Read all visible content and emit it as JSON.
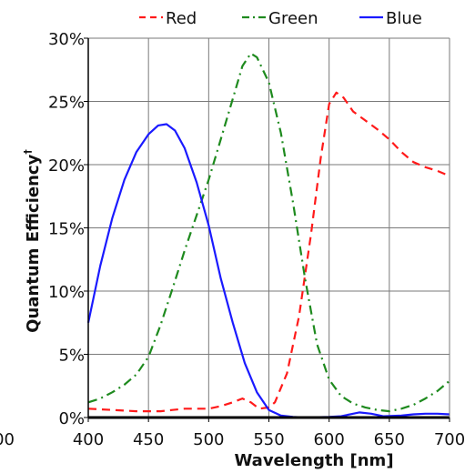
{
  "chart_data": {
    "type": "line",
    "title": "",
    "xlabel": "Wavelength [nm]",
    "ylabel": "Quantum Efficiency",
    "ylabel_mark": "†",
    "xlim": [
      400,
      700
    ],
    "ylim": [
      0,
      30
    ],
    "x_ticks": [
      400,
      450,
      500,
      550,
      600,
      650,
      700
    ],
    "x_tick_labels": [
      "400",
      "450",
      "500",
      "550",
      "600",
      "650",
      "700"
    ],
    "y_ticks": [
      0,
      5,
      10,
      15,
      20,
      25,
      30
    ],
    "y_tick_labels": [
      "0%",
      "5%",
      "10%",
      "15%",
      "20%",
      "25%",
      "30%"
    ],
    "stray_label": "00",
    "grid": true,
    "legend_position": "top",
    "series": [
      {
        "name": "Red",
        "color": "#ff1a1a",
        "dash": "dashed",
        "points": [
          [
            400,
            0.7
          ],
          [
            420,
            0.6
          ],
          [
            440,
            0.5
          ],
          [
            460,
            0.5
          ],
          [
            470,
            0.6
          ],
          [
            480,
            0.7
          ],
          [
            500,
            0.7
          ],
          [
            510,
            0.9
          ],
          [
            520,
            1.2
          ],
          [
            528,
            1.5
          ],
          [
            535,
            1.2
          ],
          [
            542,
            0.7
          ],
          [
            550,
            0.8
          ],
          [
            555,
            1.2
          ],
          [
            565,
            3.5
          ],
          [
            575,
            8.0
          ],
          [
            585,
            14.5
          ],
          [
            593,
            20.5
          ],
          [
            600,
            24.8
          ],
          [
            606,
            25.7
          ],
          [
            612,
            25.3
          ],
          [
            620,
            24.2
          ],
          [
            630,
            23.5
          ],
          [
            640,
            22.8
          ],
          [
            650,
            22.0
          ],
          [
            660,
            21.0
          ],
          [
            670,
            20.2
          ],
          [
            680,
            19.8
          ],
          [
            690,
            19.5
          ],
          [
            700,
            19.1
          ]
        ]
      },
      {
        "name": "Green",
        "color": "#1e8a1e",
        "dash": "dashdot",
        "points": [
          [
            400,
            1.2
          ],
          [
            410,
            1.5
          ],
          [
            420,
            2.0
          ],
          [
            430,
            2.6
          ],
          [
            440,
            3.4
          ],
          [
            450,
            4.8
          ],
          [
            460,
            7.3
          ],
          [
            470,
            10.2
          ],
          [
            480,
            13.2
          ],
          [
            490,
            16.0
          ],
          [
            500,
            18.8
          ],
          [
            510,
            22.0
          ],
          [
            520,
            25.2
          ],
          [
            528,
            27.8
          ],
          [
            535,
            28.8
          ],
          [
            540,
            28.5
          ],
          [
            550,
            26.5
          ],
          [
            560,
            22.5
          ],
          [
            570,
            17.0
          ],
          [
            580,
            11.0
          ],
          [
            590,
            5.8
          ],
          [
            600,
            3.0
          ],
          [
            610,
            1.7
          ],
          [
            620,
            1.1
          ],
          [
            630,
            0.8
          ],
          [
            640,
            0.6
          ],
          [
            650,
            0.5
          ],
          [
            660,
            0.7
          ],
          [
            670,
            1.0
          ],
          [
            680,
            1.5
          ],
          [
            690,
            2.1
          ],
          [
            700,
            2.9
          ]
        ]
      },
      {
        "name": "Blue",
        "color": "#1a1aff",
        "dash": "solid",
        "points": [
          [
            400,
            7.5
          ],
          [
            410,
            12.0
          ],
          [
            420,
            15.8
          ],
          [
            430,
            18.8
          ],
          [
            440,
            21.0
          ],
          [
            450,
            22.4
          ],
          [
            458,
            23.1
          ],
          [
            465,
            23.2
          ],
          [
            472,
            22.7
          ],
          [
            480,
            21.3
          ],
          [
            490,
            18.6
          ],
          [
            500,
            15.2
          ],
          [
            510,
            11.0
          ],
          [
            520,
            7.5
          ],
          [
            530,
            4.3
          ],
          [
            540,
            2.0
          ],
          [
            550,
            0.6
          ],
          [
            560,
            0.15
          ],
          [
            570,
            0.05
          ],
          [
            580,
            0.0
          ],
          [
            600,
            0.05
          ],
          [
            610,
            0.1
          ],
          [
            620,
            0.3
          ],
          [
            625,
            0.4
          ],
          [
            635,
            0.3
          ],
          [
            645,
            0.1
          ],
          [
            660,
            0.15
          ],
          [
            670,
            0.25
          ],
          [
            680,
            0.3
          ],
          [
            690,
            0.3
          ],
          [
            700,
            0.25
          ]
        ]
      }
    ]
  }
}
